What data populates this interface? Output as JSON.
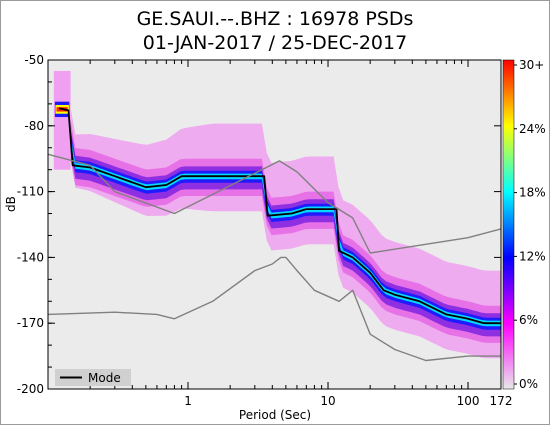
{
  "chart_data": {
    "type": "heatmap",
    "title_line1": "GE.SAUI.--.BHZ : 16978 PSDs",
    "title_line2": "01-JAN-2017 / 25-DEC-2017",
    "xlabel": "Period (Sec)",
    "ylabel": "dB",
    "x_scale": "log",
    "xlim": [
      0.1,
      172
    ],
    "ylim": [
      -200,
      -50
    ],
    "x_ticks": [
      {
        "value": 1,
        "label": "1"
      },
      {
        "value": 10,
        "label": "10"
      },
      {
        "value": 100,
        "label": "100"
      },
      {
        "value": 172,
        "label": "172"
      }
    ],
    "y_ticks": [
      {
        "value": -50,
        "label": "-50"
      },
      {
        "value": -80,
        "label": "-80"
      },
      {
        "value": -110,
        "label": "-110"
      },
      {
        "value": -140,
        "label": "-140"
      },
      {
        "value": -170,
        "label": "-170"
      },
      {
        "value": -200,
        "label": "-200"
      }
    ],
    "colorbar": {
      "labels": [
        "30+",
        "24%",
        "18%",
        "12%",
        "6%",
        "0%"
      ],
      "colors": [
        "#e8e8e8",
        "#ff00ff",
        "#0000ff",
        "#00ffff",
        "#ffff00",
        "#ff0000"
      ]
    },
    "legend": {
      "label": "Mode",
      "placement": "bottom-left"
    },
    "series": [
      {
        "name": "Mode",
        "color": "#000000",
        "points": [
          [
            0.12,
            -72
          ],
          [
            0.14,
            -73
          ],
          [
            0.15,
            -98
          ],
          [
            0.2,
            -99
          ],
          [
            0.3,
            -103
          ],
          [
            0.5,
            -108
          ],
          [
            0.7,
            -107
          ],
          [
            0.9,
            -103
          ],
          [
            1.5,
            -103
          ],
          [
            2.5,
            -103
          ],
          [
            3.5,
            -103
          ],
          [
            3.7,
            -121
          ],
          [
            5.5,
            -120
          ],
          [
            7,
            -118
          ],
          [
            10,
            -118
          ],
          [
            11.5,
            -118
          ],
          [
            12,
            -137
          ],
          [
            15,
            -140
          ],
          [
            20,
            -147
          ],
          [
            25,
            -155
          ],
          [
            30,
            -157
          ],
          [
            45,
            -160
          ],
          [
            70,
            -166
          ],
          [
            100,
            -168
          ],
          [
            130,
            -170
          ],
          [
            172,
            -170
          ]
        ]
      },
      {
        "name": "",
        "color": "#808080",
        "points": [
          [
            0.1,
            -93
          ],
          [
            0.2,
            -98
          ],
          [
            0.3,
            -110
          ],
          [
            0.8,
            -120
          ],
          [
            4.5,
            -96
          ],
          [
            6,
            -101
          ],
          [
            10,
            -115
          ],
          [
            15,
            -122
          ],
          [
            20,
            -138
          ],
          [
            100,
            -131
          ],
          [
            172,
            -127
          ]
        ]
      },
      {
        "name": "",
        "color": "#808080",
        "points": [
          [
            0.1,
            -166
          ],
          [
            0.3,
            -165
          ],
          [
            0.6,
            -166
          ],
          [
            0.8,
            -168
          ],
          [
            1.5,
            -160
          ],
          [
            3,
            -146
          ],
          [
            4,
            -143
          ],
          [
            4.6,
            -140
          ],
          [
            5,
            -140
          ],
          [
            6,
            -146
          ],
          [
            8,
            -155
          ],
          [
            12,
            -160
          ],
          [
            15,
            -155
          ],
          [
            20,
            -175
          ],
          [
            30,
            -182
          ],
          [
            50,
            -187
          ],
          [
            100,
            -185
          ],
          [
            172,
            -185
          ]
        ]
      }
    ]
  }
}
